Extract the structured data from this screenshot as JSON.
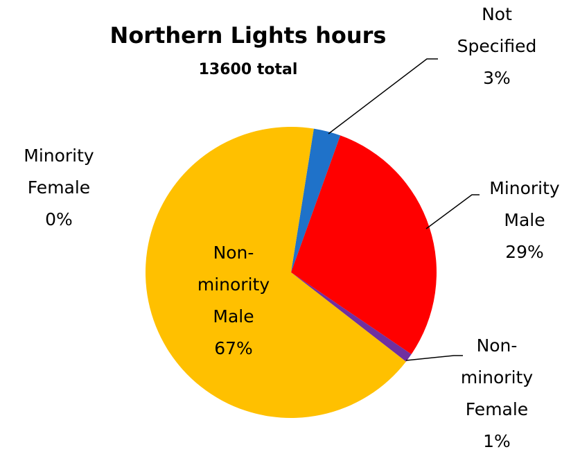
{
  "chart_data": {
    "type": "pie",
    "title": "Northern Lights hours",
    "subtitle": "13600 total",
    "categories": [
      "Not Specified",
      "Minority Male",
      "Non-minority Female",
      "Non-minority Male",
      "Minority Female"
    ],
    "values": [
      3,
      29,
      1,
      67,
      0
    ],
    "value_labels": [
      "3%",
      "29%",
      "1%",
      "67%",
      "0%"
    ],
    "colors": [
      "#1f72c9",
      "#ff0000",
      "#7030a0",
      "#ffc000",
      "#a5a5a5"
    ]
  }
}
